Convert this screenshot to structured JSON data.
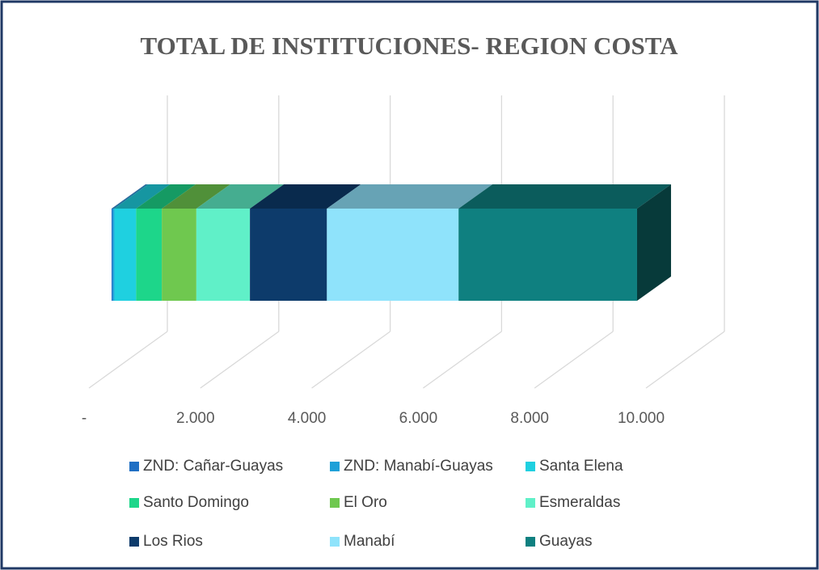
{
  "chart_data": {
    "type": "bar3d_stacked_horizontal",
    "title": "TOTAL DE INSTITUCIONES- REGION COSTA",
    "series": [
      {
        "name": "ZND: Cañar-Guayas",
        "color": "#1f6fc4",
        "values": [
          20
        ]
      },
      {
        "name": "ZND: Manabí-Guayas",
        "color": "#1ea0d8",
        "values": [
          30
        ]
      },
      {
        "name": "Santa Elena",
        "color": "#1fd0e0",
        "values": [
          390
        ]
      },
      {
        "name": "Santo Domingo",
        "color": "#1dd68a",
        "values": [
          460
        ]
      },
      {
        "name": "El Oro",
        "color": "#6fc84f",
        "values": [
          620
        ]
      },
      {
        "name": "Esmeraldas",
        "color": "#60f0c8",
        "values": [
          960
        ]
      },
      {
        "name": "Los Rios",
        "color": "#0d3b6b",
        "values": [
          1380
        ]
      },
      {
        "name": "Manabí",
        "color": "#8fe3fb",
        "values": [
          2360
        ]
      },
      {
        "name": "Guayas",
        "color": "#0f8080",
        "values": [
          3200
        ]
      }
    ],
    "xlim": [
      0,
      10000
    ],
    "xticks": [
      {
        "value": 0,
        "label": "-"
      },
      {
        "value": 2000,
        "label": "2.000"
      },
      {
        "value": 4000,
        "label": "4.000"
      },
      {
        "value": 6000,
        "label": "6.000"
      },
      {
        "value": 8000,
        "label": "8.000"
      },
      {
        "value": 10000,
        "label": "10.000"
      }
    ],
    "grid": true
  }
}
